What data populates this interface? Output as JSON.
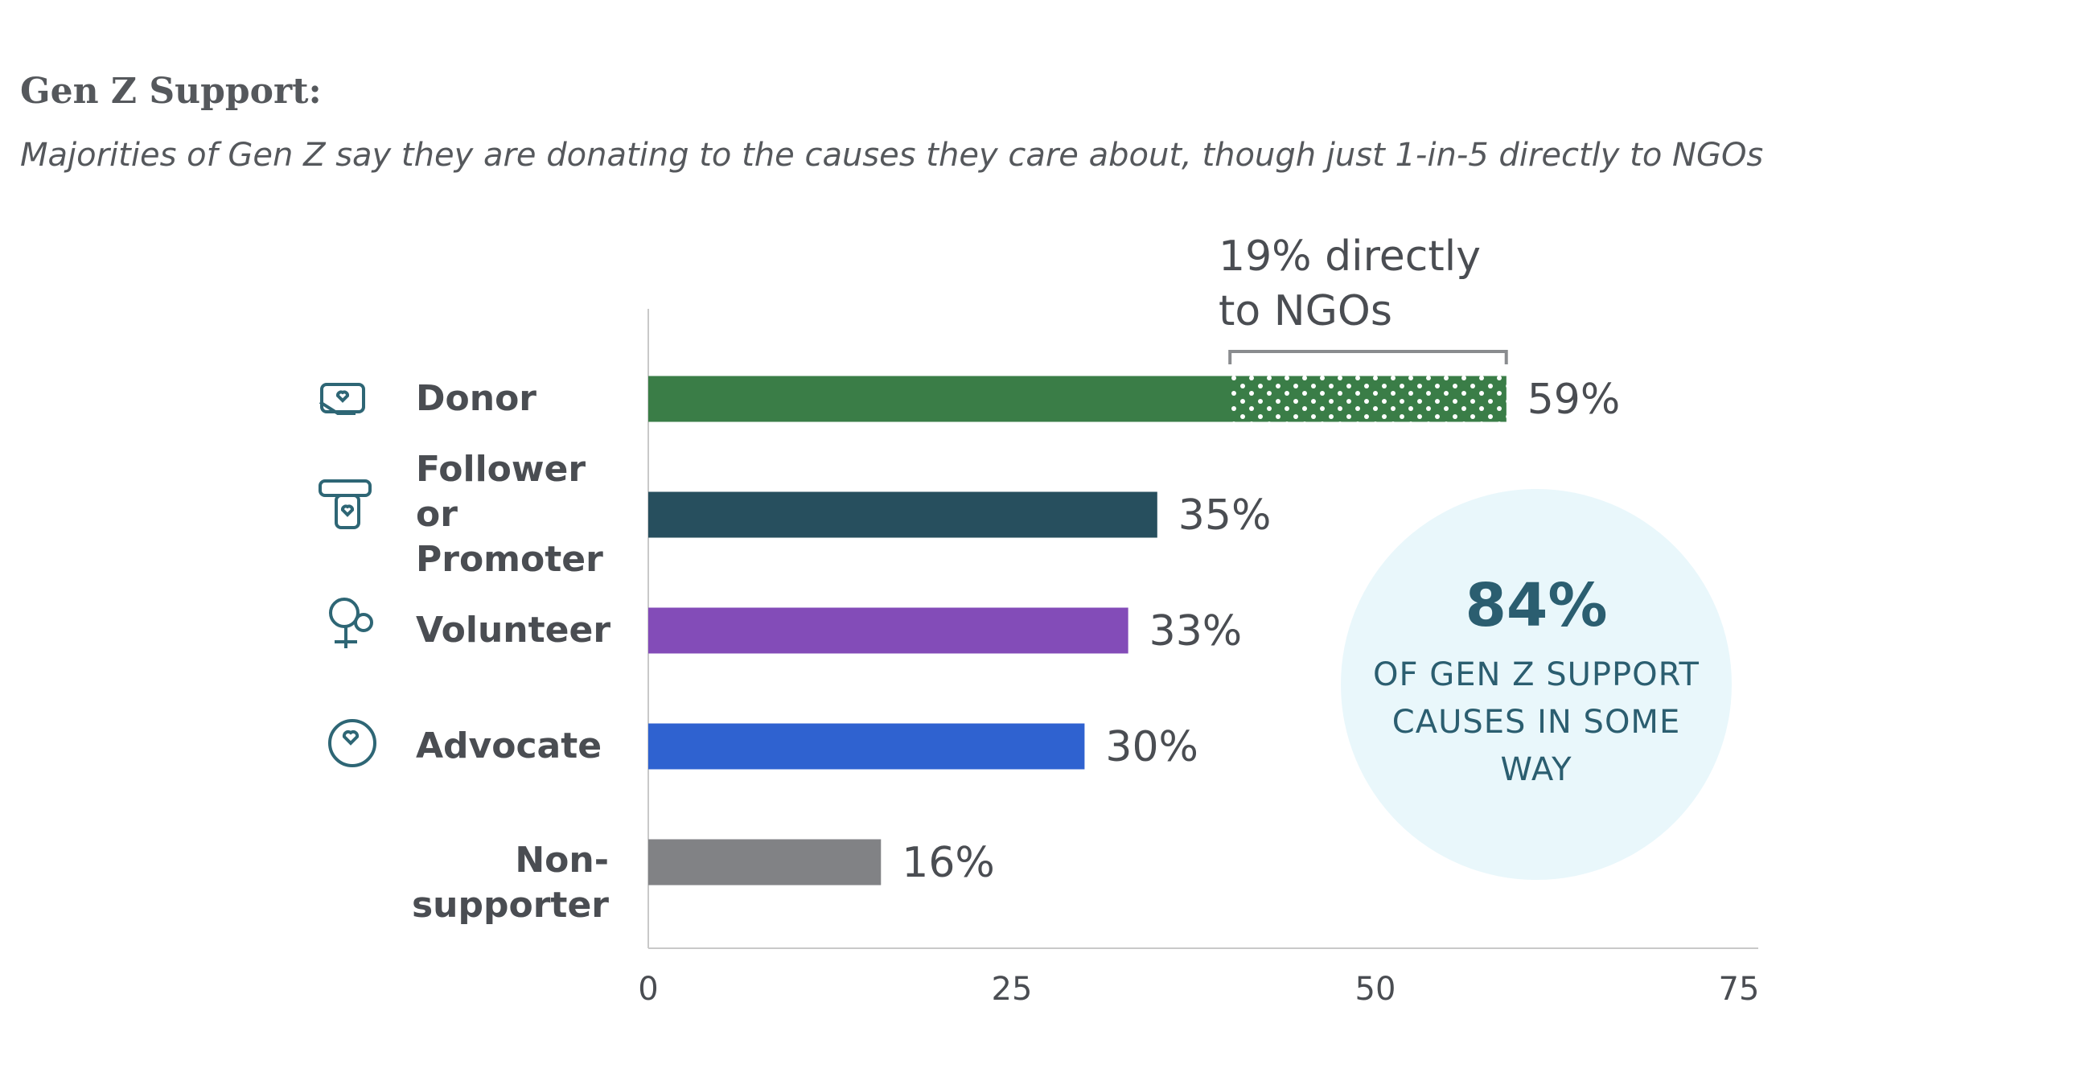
{
  "chart_data": {
    "type": "bar",
    "orientation": "horizontal",
    "title": "Gen Z Support:",
    "subtitle": "Majorities of Gen Z say they are donating to the causes they care about, though just 1-in-5 directly to NGOs",
    "categories": [
      "Donor",
      "Follower or Promoter",
      "Volunteer",
      "Advocate",
      "Non-supporter"
    ],
    "values": [
      59,
      35,
      33,
      30,
      16
    ],
    "value_labels": [
      "59%",
      "35%",
      "33%",
      "30%",
      "16%"
    ],
    "colors": [
      "#3a7d47",
      "#274f5e",
      "#834cb8",
      "#2f62d0",
      "#818285"
    ],
    "xlim": [
      0,
      75
    ],
    "xticks": [
      0,
      25,
      50,
      75
    ],
    "direct_ngo": {
      "label": "19% directly to NGOs",
      "value": 19
    },
    "callout": {
      "figure": "84%",
      "text": "OF GEN Z SUPPORT CAUSES IN SOME WAY"
    }
  }
}
